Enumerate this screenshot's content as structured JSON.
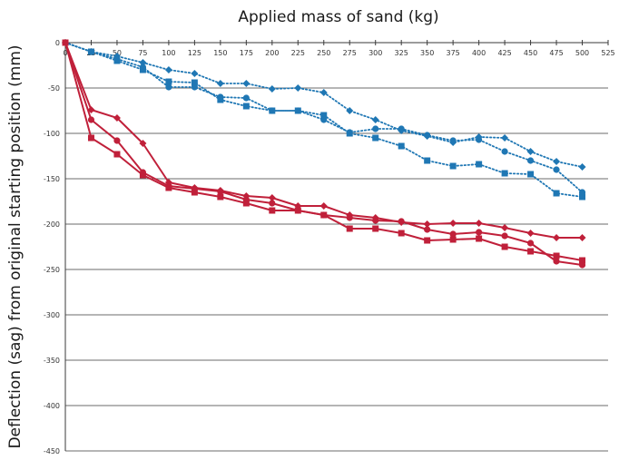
{
  "chart_data": {
    "type": "line",
    "title": "",
    "xlabel": "Applied mass of sand (kg)",
    "ylabel": "Deflection (sag) from original starting position (mm)",
    "xlim": [
      0,
      525
    ],
    "ylim": [
      -450,
      0
    ],
    "x_ticks": [
      0,
      25,
      50,
      75,
      100,
      125,
      150,
      175,
      200,
      225,
      250,
      275,
      300,
      325,
      350,
      375,
      400,
      425,
      450,
      475,
      500,
      525
    ],
    "y_ticks": [
      0,
      -50,
      -100,
      -150,
      -200,
      -250,
      -300,
      -350,
      -400,
      -450
    ],
    "x_axis_position": "top",
    "grid": "horizontal",
    "legend": "none",
    "x": [
      0,
      25,
      50,
      75,
      100,
      125,
      150,
      175,
      200,
      225,
      250,
      275,
      300,
      325,
      350,
      375,
      400,
      425,
      450,
      475,
      500
    ],
    "series": [
      {
        "color": "#1f77b4",
        "marker": "diamond",
        "line": "dotted",
        "values": [
          0,
          -10,
          -15,
          -22,
          -30,
          -34,
          -45,
          -45,
          -51,
          -50,
          -55,
          -75,
          -85,
          -97,
          -103,
          -110,
          -104,
          -105,
          -120,
          -131,
          -137
        ]
      },
      {
        "color": "#1f77b4",
        "marker": "circle",
        "line": "dotted",
        "values": [
          0,
          -10,
          -18,
          -27,
          -49,
          -49,
          -60,
          -61,
          -75,
          -75,
          -85,
          -99,
          -95,
          -95,
          -102,
          -108,
          -107,
          -120,
          -130,
          -140,
          -165
        ]
      },
      {
        "color": "#1f77b4",
        "marker": "square",
        "line": "dotted",
        "values": [
          0,
          -10,
          -20,
          -30,
          -43,
          -44,
          -63,
          -70,
          -75,
          -75,
          -80,
          -100,
          -105,
          -114,
          -130,
          -136,
          -134,
          -144,
          -145,
          -166,
          -170
        ]
      },
      {
        "color": "#c0203a",
        "marker": "diamond",
        "line": "solid",
        "values": [
          0,
          -74,
          -83,
          -111,
          -154,
          -160,
          -163,
          -169,
          -171,
          -180,
          -180,
          -190,
          -193,
          -198,
          -200,
          -199,
          -199,
          -204,
          -210,
          -215,
          -215
        ]
      },
      {
        "color": "#c0203a",
        "marker": "circle",
        "line": "solid",
        "values": [
          0,
          -85,
          -108,
          -143,
          -158,
          -161,
          -164,
          -173,
          -177,
          -185,
          -190,
          -193,
          -196,
          -197,
          -206,
          -211,
          -209,
          -213,
          -221,
          -241,
          -245
        ]
      },
      {
        "color": "#c0203a",
        "marker": "square",
        "line": "solid",
        "values": [
          0,
          -105,
          -123,
          -146,
          -160,
          -165,
          -170,
          -177,
          -185,
          -185,
          -190,
          -205,
          -205,
          -210,
          -218,
          -217,
          -216,
          -225,
          -230,
          -235,
          -240
        ]
      }
    ]
  }
}
